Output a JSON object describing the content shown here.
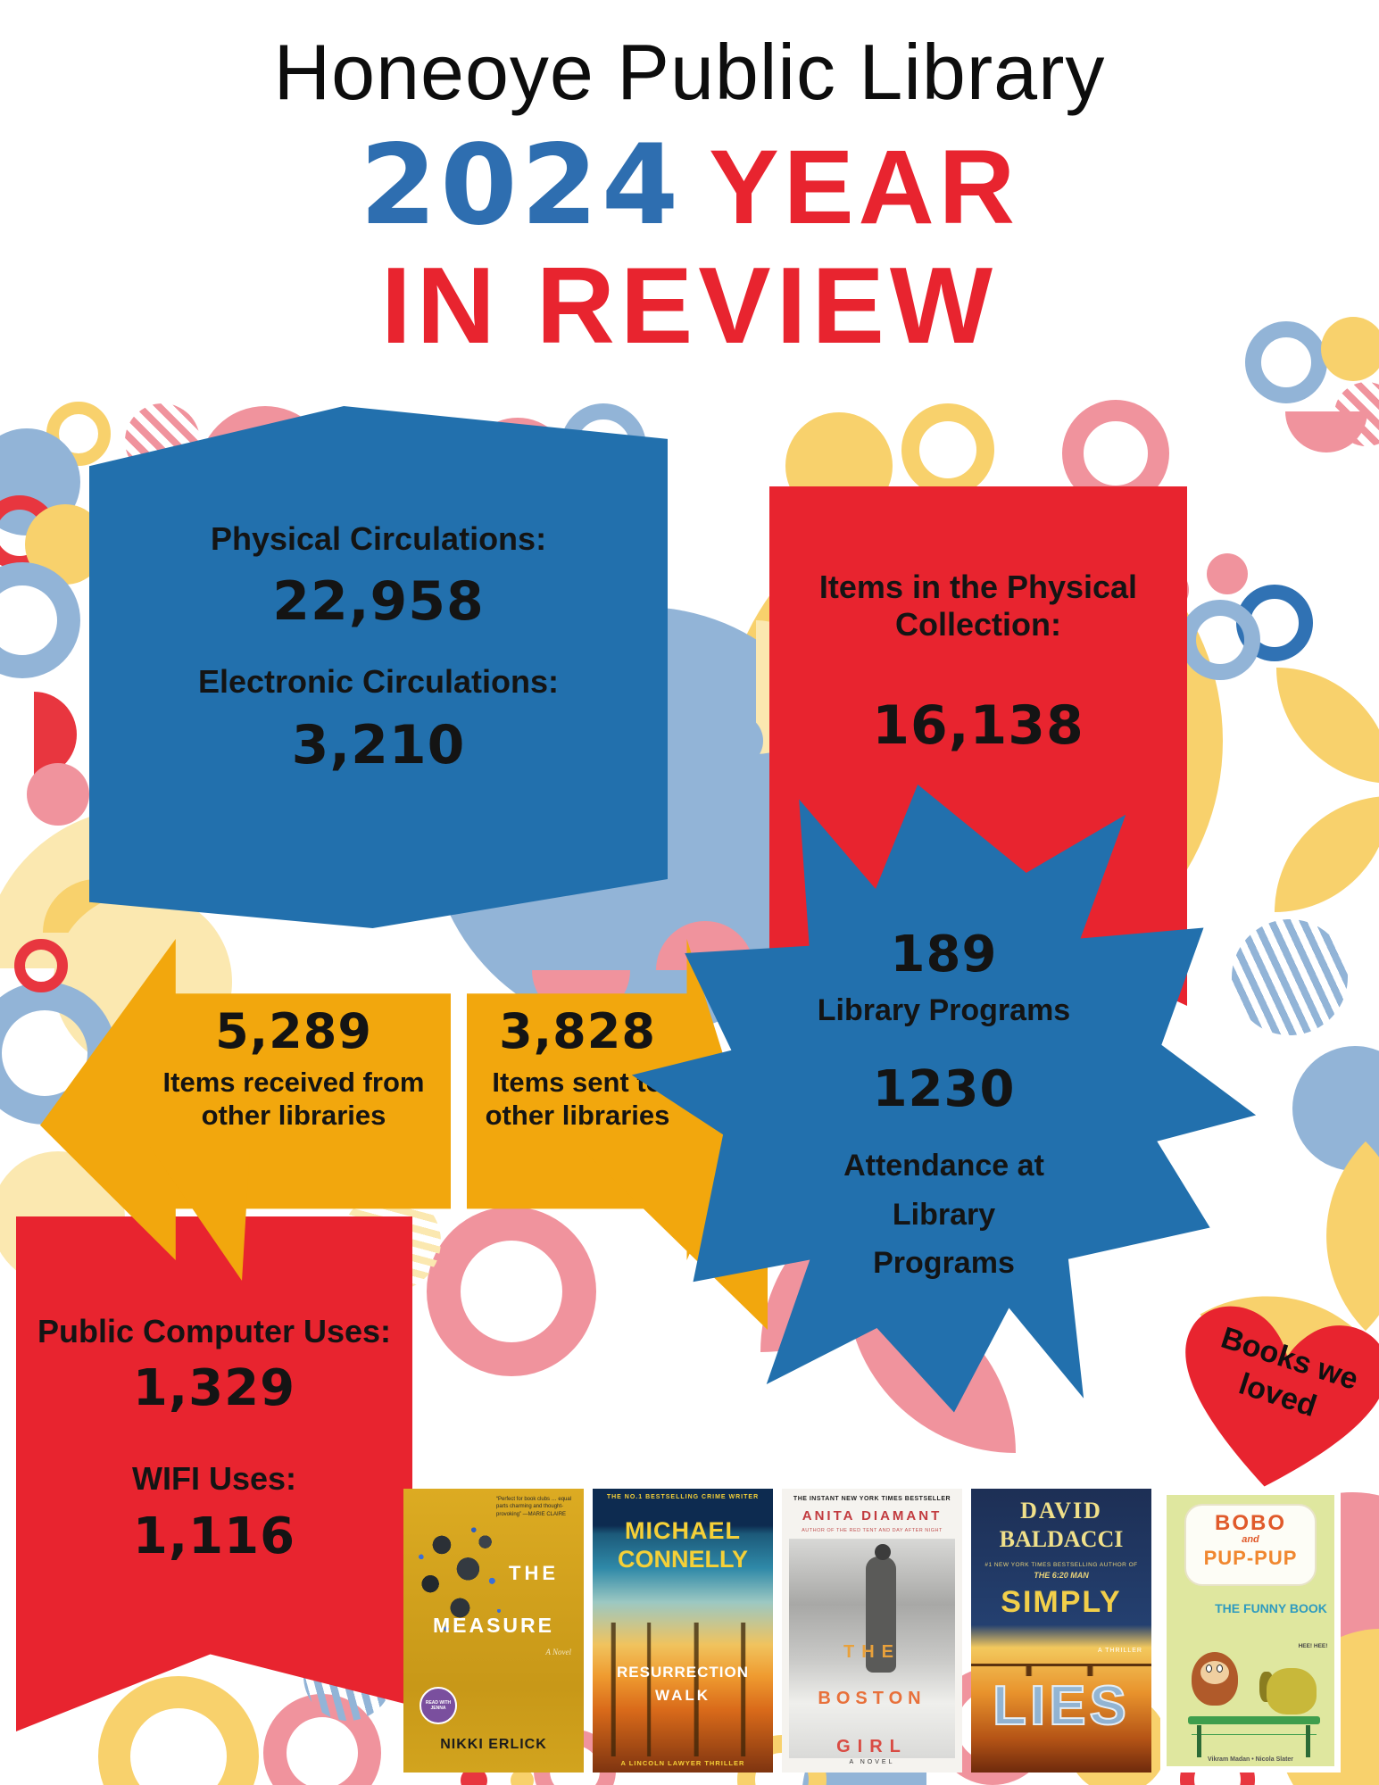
{
  "title": {
    "library": "Honeoye Public Library",
    "year": "2024",
    "year_word": "YEAR",
    "review_word": "IN REVIEW"
  },
  "colors": {
    "accent_blue": "#2270ad",
    "accent_red": "#e8242f",
    "accent_gold": "#f2a70d",
    "year_blue": "#2e6eb0"
  },
  "circulation_banner": {
    "physical_label": "Physical Circulations:",
    "physical_value": "22,958",
    "electronic_label": "Electronic Circulations:",
    "electronic_value": "3,210"
  },
  "collection_banner": {
    "label": "Items in the Physical Collection:",
    "value": "16,138"
  },
  "received_arrow": {
    "value": "5,289",
    "label": "Items received from other libraries"
  },
  "sent_arrow": {
    "value": "3,828",
    "label": "Items sent to other libraries"
  },
  "programs_burst": {
    "programs_value": "189",
    "programs_label": "Library Programs",
    "attendance_value": "1230",
    "attendance_label": "Attendance at Library Programs"
  },
  "usage_banner": {
    "computer_label": "Public Computer Uses:",
    "computer_value": "1,329",
    "wifi_label": "WIFI Uses:",
    "wifi_value": "1,116"
  },
  "heart": {
    "line1": "Books we",
    "line2": "loved"
  },
  "books": [
    {
      "quote": "“Perfect for book clubs … equal parts charming and thought-provoking” —MARIE CLAIRE",
      "title_line1": "THE",
      "title_line2": "MEASURE",
      "subtitle": "A Novel",
      "badge": "READ WITH JENNA",
      "author": "NIKKI ERLICK"
    },
    {
      "tagline": "THE NO.1 BESTSELLING CRIME WRITER",
      "author_line1": "MICHAEL",
      "author_line2": "CONNELLY",
      "title_line1": "RESURRECTION",
      "title_line2": "WALK",
      "series": "A LINCOLN LAWYER THRILLER"
    },
    {
      "tagline": "THE INSTANT NEW YORK TIMES BESTSELLER",
      "author": "ANITA DIAMANT",
      "author_note": "AUTHOR OF THE RED TENT AND DAY AFTER NIGHT",
      "title_line1": "THE",
      "title_line2": "BOSTON",
      "title_line3": "GIRL",
      "subtitle": "A NOVEL"
    },
    {
      "author_line1": "DAVID",
      "author_line2": "BALDACCI",
      "tagline": "#1 NEW YORK TIMES BESTSELLING AUTHOR OF",
      "tagline2": "THE 6:20 MAN",
      "title_line1": "SIMPLY",
      "title_line2": "LIES",
      "subtitle": "A THRILLER"
    },
    {
      "title_line1": "BOBO",
      "title_line2": "and",
      "title_line3": "PUP-PUP",
      "subtitle": "THE FUNNY BOOK",
      "exclaim": "HEE! HEE!",
      "authors": "Vikram Madan • Nicola Slater"
    }
  ]
}
